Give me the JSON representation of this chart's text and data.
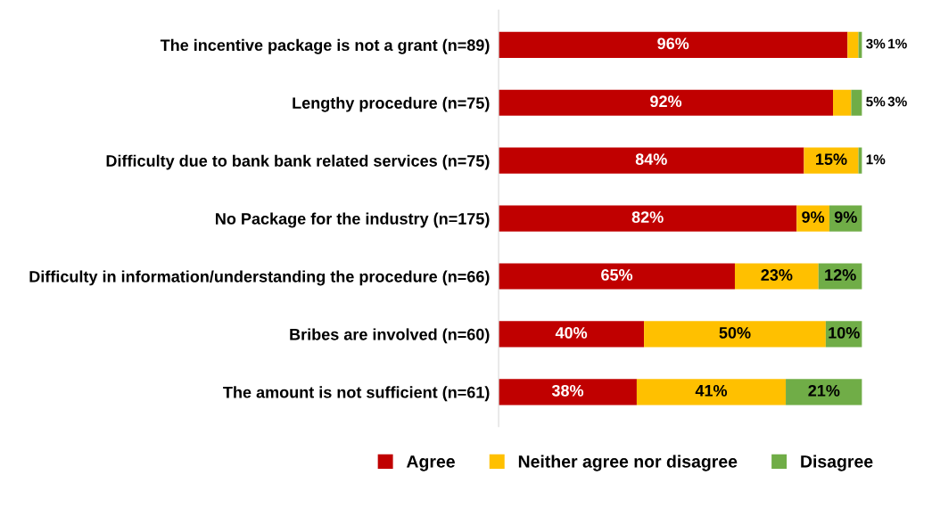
{
  "chart_data": {
    "type": "bar",
    "orientation": "horizontal",
    "stacked": true,
    "legend": "bottom",
    "grid": false,
    "tick_labels": "y",
    "categories": [
      "The incentive package is not a grant (n=89)",
      "Lengthy procedure (n=75)",
      "Difficulty due to bank bank related services (n=75)",
      "No Package for the industry (n=175)",
      "Difficulty in information/understanding the procedure (n=66)",
      "Bribes are involved (n=60)",
      "The amount is not sufficient (n=61)"
    ],
    "series": [
      {
        "name": "Agree",
        "color": "#c00000",
        "values": [
          96,
          92,
          84,
          82,
          65,
          40,
          38
        ],
        "value_labels": [
          "96%",
          "92%",
          "84%",
          "82%",
          "65%",
          "40%",
          "38%"
        ]
      },
      {
        "name": "Neither agree nor disagree",
        "color": "#ffc000",
        "values": [
          3,
          5,
          15,
          9,
          23,
          50,
          41
        ],
        "value_labels": [
          "3%",
          "5%",
          "15%",
          "9%",
          "23%",
          "50%",
          "41%"
        ]
      },
      {
        "name": "Disagree",
        "color": "#70ad47",
        "values": [
          1,
          3,
          1,
          9,
          12,
          10,
          21
        ],
        "value_labels": [
          "1%",
          "3%",
          "1%",
          "9%",
          "12%",
          "10%",
          "21%"
        ]
      }
    ]
  }
}
